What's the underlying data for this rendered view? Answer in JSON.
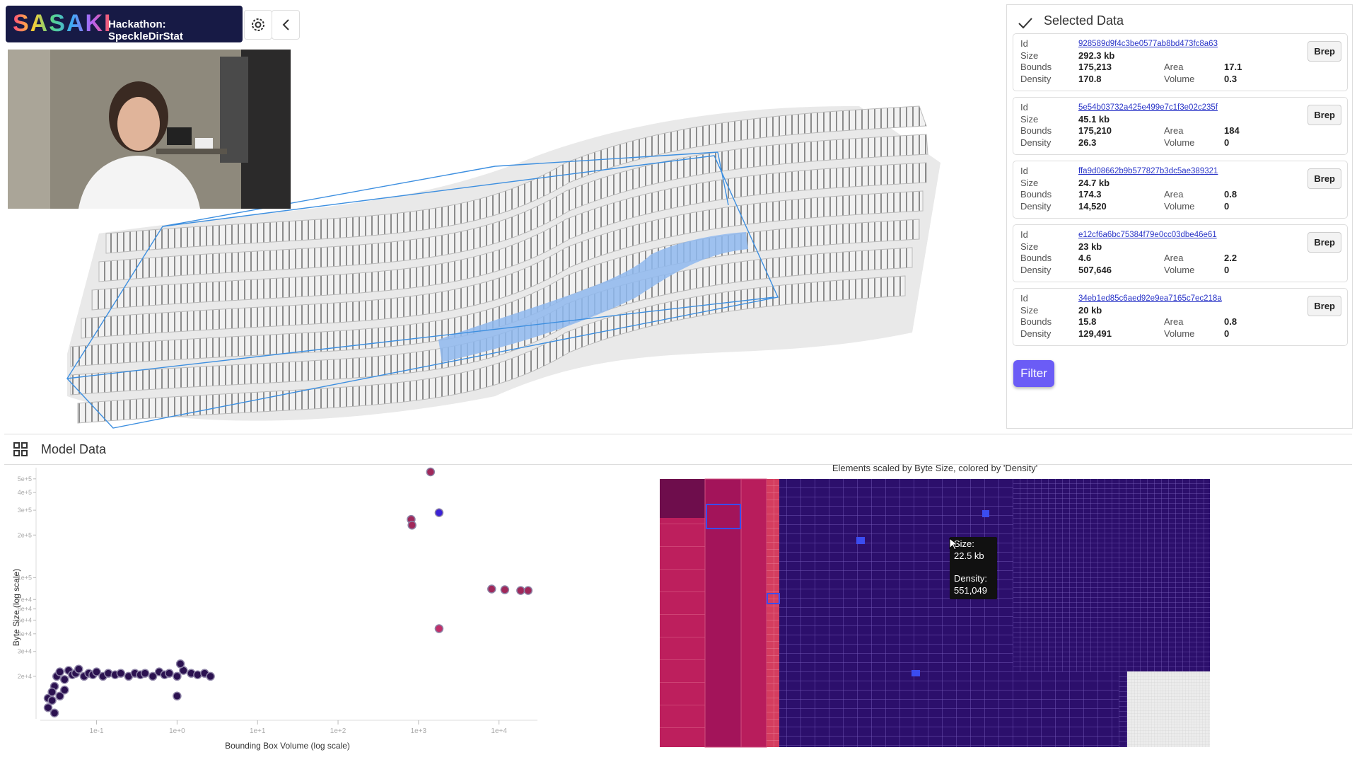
{
  "header": {
    "logo": "SASAKI",
    "title": "Hackathon: SpeckleDirStat"
  },
  "selected_data": {
    "title": "Selected Data",
    "labels": {
      "id": "Id",
      "size": "Size",
      "bounds": "Bounds",
      "density": "Density",
      "area": "Area",
      "volume": "Volume"
    },
    "items": [
      {
        "id": "928589d9f4c3be0577ab8bd473fc8a63",
        "size": "292.3 kb",
        "bounds": "175,213",
        "density": "170.8",
        "area": "17.1",
        "volume": "0.3",
        "button": "Brep"
      },
      {
        "id": "5e54b03732a425e499e7c1f3e02c235f",
        "size": "45.1 kb",
        "bounds": "175,210",
        "density": "26.3",
        "area": "184",
        "volume": "0",
        "button": "Brep"
      },
      {
        "id": "ffa9d08662b9b577827b3dc5ae389321",
        "size": "24.7 kb",
        "bounds": "174.3",
        "density": "14,520",
        "area": "0.8",
        "volume": "0",
        "button": "Brep"
      },
      {
        "id": "e12cf6a6bc75384f79e0cc03dbe46e61",
        "size": "23 kb",
        "bounds": "4.6",
        "density": "507,646",
        "area": "2.2",
        "volume": "0",
        "button": "Brep"
      },
      {
        "id": "34eb1ed85c6aed92e9ea7165c7ec218a",
        "size": "20 kb",
        "bounds": "15.8",
        "density": "129,491",
        "area": "0.8",
        "volume": "0",
        "button": "Brep"
      }
    ],
    "filter_button": "Filter"
  },
  "model_data": {
    "title": "Model Data"
  },
  "chart_data": {
    "type": "scatter",
    "x_label": "Bounding Box Volume (log scale)",
    "y_label": "Byte Size (log scale)",
    "xscale": "log",
    "yscale": "log",
    "xlim": [
      0.02,
      30000
    ],
    "ylim": [
      10000,
      600000
    ],
    "xticks": [
      {
        "value": 0.1,
        "label": "1e-1"
      },
      {
        "value": 1,
        "label": "1e+0"
      },
      {
        "value": 10,
        "label": "1e+1"
      },
      {
        "value": 100,
        "label": "1e+2"
      },
      {
        "value": 1000,
        "label": "1e+3"
      },
      {
        "value": 10000,
        "label": "1e+4"
      }
    ],
    "yticks": [
      {
        "value": 20000,
        "label": "2e+4"
      },
      {
        "value": 30000,
        "label": "3e+4"
      },
      {
        "value": 40000,
        "label": "4e+4"
      },
      {
        "value": 50000,
        "label": "5e+4"
      },
      {
        "value": 60000,
        "label": "6e+4"
      },
      {
        "value": 70000,
        "label": "7e+4"
      },
      {
        "value": 100000,
        "label": "1e+5"
      },
      {
        "value": 200000,
        "label": "2e+5"
      },
      {
        "value": 300000,
        "label": "3e+5"
      },
      {
        "value": 400000,
        "label": "4e+5"
      },
      {
        "value": 500000,
        "label": "5e+5"
      }
    ],
    "series": [
      {
        "color": "#2b1150",
        "x": [
          0.025,
          0.028,
          0.03,
          0.032,
          0.035,
          0.04,
          0.045,
          0.05,
          0.055,
          0.06,
          0.07,
          0.08,
          0.09,
          0.1,
          0.12,
          0.14,
          0.17,
          0.2,
          0.25,
          0.3,
          0.35,
          0.4,
          0.5,
          0.6,
          0.7,
          0.8,
          1.0,
          1.2,
          1.5,
          1.8,
          2.2,
          2.6,
          0.025,
          0.03,
          0.035,
          0.028,
          0.04,
          1.0,
          1.1
        ],
        "values": [
          14000,
          13500,
          17000,
          20000,
          21500,
          19000,
          22000,
          20500,
          21000,
          22500,
          20000,
          21000,
          20500,
          21500,
          20000,
          21000,
          20500,
          21000,
          20000,
          21000,
          20500,
          21000,
          20000,
          21500,
          20500,
          21000,
          20000,
          22000,
          21000,
          20500,
          21000,
          20000,
          12000,
          11000,
          14500,
          15500,
          16000,
          14500,
          24500
        ]
      },
      {
        "color": "#a0285a",
        "x": [
          1410,
          810,
          830,
          8100,
          11800,
          18600,
          23000
        ],
        "values": [
          560000,
          258000,
          235000,
          83000,
          82000,
          81000,
          81000
        ]
      },
      {
        "color": "#3b22d6",
        "x": [
          1800
        ],
        "values": [
          288000
        ]
      },
      {
        "color": "#c0306a",
        "x": [
          1800
        ],
        "values": [
          43500
        ]
      }
    ]
  },
  "treemap": {
    "title": "Elements scaled by Byte Size, colored by 'Density'",
    "tooltip": {
      "size_label": "Size:",
      "size": "22.5 kb",
      "density_label": "Density:",
      "density": "551,049"
    }
  }
}
